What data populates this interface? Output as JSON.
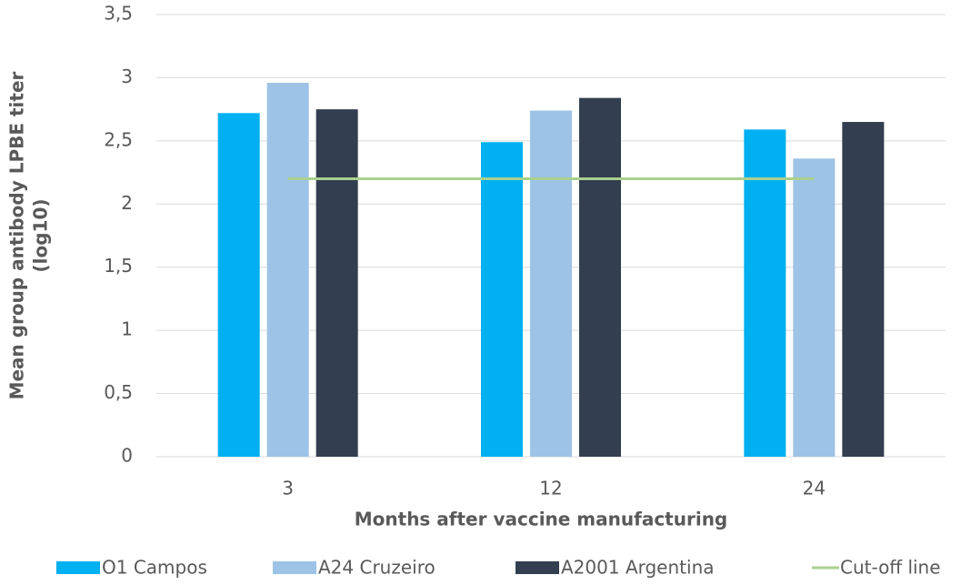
{
  "chart_data": {
    "type": "bar",
    "categories": [
      "3",
      "12",
      "24"
    ],
    "series": [
      {
        "name": "O1 Campos",
        "color": "#00b0f0",
        "values": [
          2.72,
          2.49,
          2.59
        ]
      },
      {
        "name": "A24 Cruzeiro",
        "color": "#9dc3e6",
        "values": [
          2.96,
          2.74,
          2.36
        ]
      },
      {
        "name": "A2001 Argentina",
        "color": "#333f50",
        "values": [
          2.75,
          2.84,
          2.65
        ]
      },
      {
        "name": "Cut-off line",
        "color": "#a9d18e",
        "type": "line",
        "values": [
          2.2,
          2.2,
          2.2
        ]
      }
    ],
    "xlabel": "Months after vaccine manufacturing",
    "ylabel": [
      "Mean group antibody LPBE titer",
      "(log10)"
    ],
    "ylim": [
      0,
      3.5
    ],
    "yticks": [
      0,
      {
        "value": 0.5,
        "label": "0,5"
      },
      1,
      {
        "value": 1.5,
        "label": "1,5"
      },
      2,
      {
        "value": 2.5,
        "label": "2,5"
      },
      3,
      {
        "value": 3.5,
        "label": "3,5"
      }
    ],
    "grid": true,
    "legend": "bottom"
  }
}
